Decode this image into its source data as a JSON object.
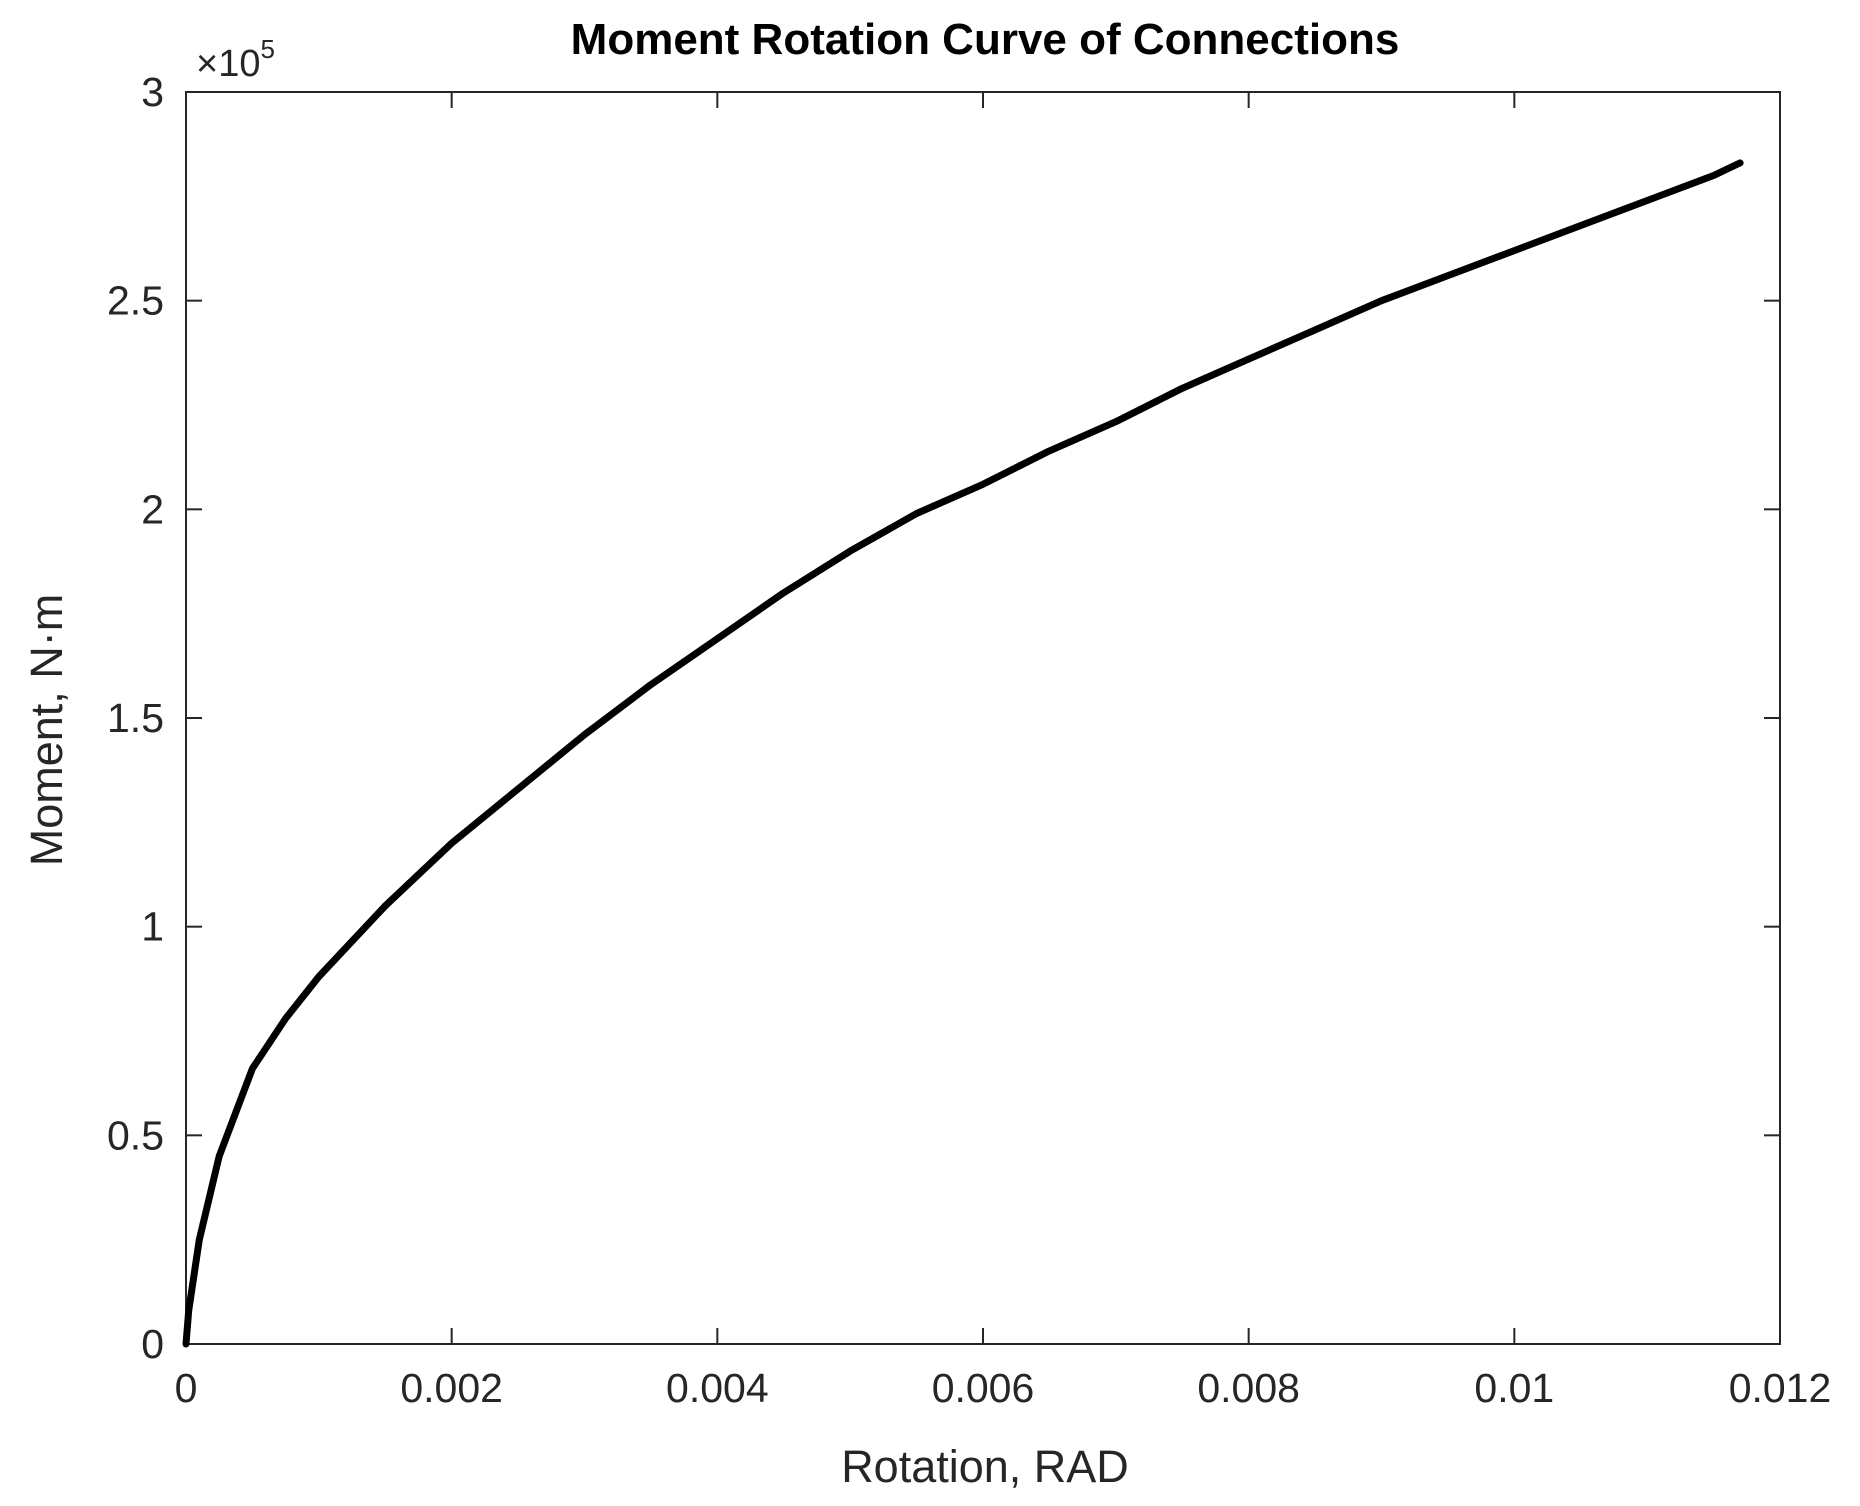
{
  "chart_data": {
    "type": "line",
    "title": "Moment Rotation Curve of Connections",
    "xlabel": "Rotation, RAD",
    "ylabel": "Moment,  N·m",
    "y_exponent_label": "×10",
    "y_exponent_power": "5",
    "xlim": [
      0,
      0.012
    ],
    "ylim": [
      0,
      3
    ],
    "x_ticks": [
      0,
      0.002,
      0.004,
      0.006,
      0.008,
      0.01,
      0.012
    ],
    "x_tick_labels": [
      "0",
      "0.002",
      "0.004",
      "0.006",
      "0.008",
      "0.01",
      "0.012"
    ],
    "y_ticks": [
      0,
      0.5,
      1,
      1.5,
      2,
      2.5,
      3
    ],
    "y_tick_labels": [
      "0",
      "0.5",
      "1",
      "1.5",
      "2",
      "2.5",
      "3"
    ],
    "grid": false,
    "line_color": "#000000",
    "series": [
      {
        "x": [
          0,
          2e-05,
          0.0001,
          0.00025,
          0.0005,
          0.00075,
          0.001,
          0.0015,
          0.002,
          0.0025,
          0.003,
          0.0035,
          0.004,
          0.0045,
          0.005,
          0.0055,
          0.006,
          0.0065,
          0.007,
          0.0075,
          0.008,
          0.0085,
          0.009,
          0.0095,
          0.01,
          0.0105,
          0.011,
          0.0115,
          0.0117
        ],
        "y": [
          0,
          0.08,
          0.25,
          0.45,
          0.66,
          0.78,
          0.88,
          1.05,
          1.2,
          1.33,
          1.46,
          1.58,
          1.69,
          1.8,
          1.9,
          1.99,
          2.06,
          2.14,
          2.21,
          2.29,
          2.36,
          2.43,
          2.5,
          2.56,
          2.62,
          2.68,
          2.74,
          2.8,
          2.83
        ]
      }
    ]
  }
}
